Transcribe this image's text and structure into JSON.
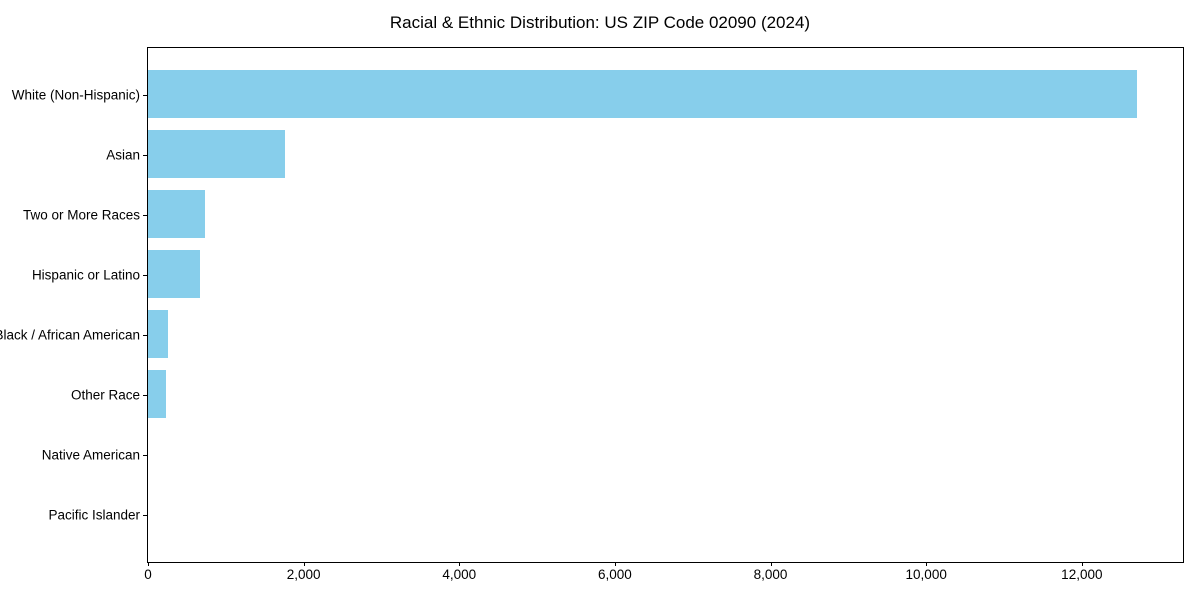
{
  "chart_data": {
    "type": "bar",
    "orientation": "horizontal",
    "title": "Racial & Ethnic Distribution: US ZIP Code 02090 (2024)",
    "categories": [
      "White (Non-Hispanic)",
      "Asian",
      "Two or More Races",
      "Hispanic or Latino",
      "Black / African American",
      "Other Race",
      "Native American",
      "Pacific Islander"
    ],
    "values": [
      12710,
      1760,
      730,
      670,
      260,
      225,
      0,
      0
    ],
    "xlabel": "",
    "ylabel": "",
    "xlim": [
      0,
      13300
    ],
    "x_ticks": [
      0,
      2000,
      4000,
      6000,
      8000,
      10000,
      12000
    ],
    "x_tick_labels": [
      "0",
      "2,000",
      "4,000",
      "6,000",
      "8,000",
      "10,000",
      "12,000"
    ],
    "bar_color": "#87CEEB",
    "grid": false,
    "legend": null,
    "background_color": "#ffffff"
  }
}
